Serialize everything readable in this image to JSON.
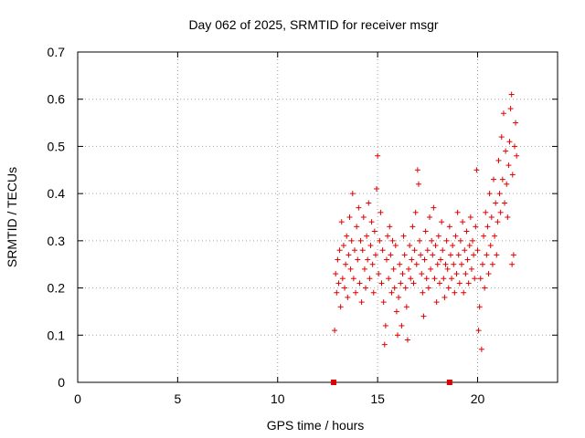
{
  "chart_data": {
    "type": "scatter",
    "title": "Day 062 of 2025, SRMTID for receiver msgr",
    "xlabel": "GPS time / hours",
    "ylabel": "SRMTID / TECUs",
    "xlim": [
      0,
      24
    ],
    "ylim": [
      0,
      0.7
    ],
    "xticks": [
      0,
      5,
      10,
      15,
      20
    ],
    "yticks": [
      0,
      0.1,
      0.2,
      0.3,
      0.4,
      0.5,
      0.6,
      0.7
    ],
    "xtick_labels": [
      "0",
      "5",
      "10",
      "15",
      "20"
    ],
    "ytick_labels": [
      "0",
      "0.1",
      "0.2",
      "0.3",
      "0.4",
      "0.5",
      "0.6",
      "0.7"
    ],
    "grid": true,
    "marker": "plus",
    "marker_color": "#e00000",
    "zero_markers": [
      12.8,
      18.6
    ],
    "series": [
      {
        "name": "SRMTID",
        "points": [
          [
            12.85,
            0.11
          ],
          [
            12.9,
            0.23
          ],
          [
            12.95,
            0.19
          ],
          [
            13.0,
            0.26
          ],
          [
            13.05,
            0.21
          ],
          [
            13.1,
            0.28
          ],
          [
            13.15,
            0.16
          ],
          [
            13.2,
            0.34
          ],
          [
            13.25,
            0.22
          ],
          [
            13.3,
            0.29
          ],
          [
            13.35,
            0.2
          ],
          [
            13.4,
            0.25
          ],
          [
            13.45,
            0.31
          ],
          [
            13.5,
            0.18
          ],
          [
            13.55,
            0.27
          ],
          [
            13.6,
            0.35
          ],
          [
            13.65,
            0.24
          ],
          [
            13.7,
            0.3
          ],
          [
            13.75,
            0.4
          ],
          [
            13.8,
            0.22
          ],
          [
            13.85,
            0.28
          ],
          [
            13.9,
            0.19
          ],
          [
            13.95,
            0.33
          ],
          [
            14.0,
            0.26
          ],
          [
            14.05,
            0.37
          ],
          [
            14.1,
            0.21
          ],
          [
            14.15,
            0.3
          ],
          [
            14.2,
            0.17
          ],
          [
            14.25,
            0.28
          ],
          [
            14.3,
            0.35
          ],
          [
            14.35,
            0.24
          ],
          [
            14.4,
            0.2
          ],
          [
            14.45,
            0.31
          ],
          [
            14.5,
            0.26
          ],
          [
            14.55,
            0.38
          ],
          [
            14.6,
            0.22
          ],
          [
            14.65,
            0.29
          ],
          [
            14.7,
            0.34
          ],
          [
            14.75,
            0.25
          ],
          [
            14.8,
            0.19
          ],
          [
            14.85,
            0.32
          ],
          [
            14.9,
            0.27
          ],
          [
            14.95,
            0.41
          ],
          [
            15.0,
            0.48
          ],
          [
            15.05,
            0.23
          ],
          [
            15.1,
            0.3
          ],
          [
            15.15,
            0.36
          ],
          [
            15.2,
            0.21
          ],
          [
            15.25,
            0.28
          ],
          [
            15.3,
            0.17
          ],
          [
            15.35,
            0.08
          ],
          [
            15.4,
            0.12
          ],
          [
            15.45,
            0.26
          ],
          [
            15.5,
            0.31
          ],
          [
            15.55,
            0.22
          ],
          [
            15.6,
            0.33
          ],
          [
            15.65,
            0.27
          ],
          [
            15.7,
            0.19
          ],
          [
            15.75,
            0.3
          ],
          [
            15.8,
            0.24
          ],
          [
            15.85,
            0.2
          ],
          [
            15.9,
            0.29
          ],
          [
            15.95,
            0.15
          ],
          [
            16.0,
            0.1
          ],
          [
            16.05,
            0.18
          ],
          [
            16.1,
            0.25
          ],
          [
            16.15,
            0.21
          ],
          [
            16.2,
            0.12
          ],
          [
            16.25,
            0.23
          ],
          [
            16.3,
            0.31
          ],
          [
            16.35,
            0.27
          ],
          [
            16.4,
            0.2
          ],
          [
            16.45,
            0.16
          ],
          [
            16.5,
            0.09
          ],
          [
            16.55,
            0.24
          ],
          [
            16.6,
            0.29
          ],
          [
            16.65,
            0.22
          ],
          [
            16.7,
            0.26
          ],
          [
            16.75,
            0.33
          ],
          [
            16.8,
            0.21
          ],
          [
            16.85,
            0.28
          ],
          [
            16.9,
            0.36
          ],
          [
            16.95,
            0.25
          ],
          [
            17.0,
            0.45
          ],
          [
            17.05,
            0.42
          ],
          [
            17.1,
            0.3
          ],
          [
            17.15,
            0.27
          ],
          [
            17.2,
            0.23
          ],
          [
            17.25,
            0.19
          ],
          [
            17.3,
            0.14
          ],
          [
            17.35,
            0.26
          ],
          [
            17.4,
            0.32
          ],
          [
            17.45,
            0.22
          ],
          [
            17.5,
            0.28
          ],
          [
            17.55,
            0.2
          ],
          [
            17.6,
            0.35
          ],
          [
            17.65,
            0.24
          ],
          [
            17.7,
            0.3
          ],
          [
            17.75,
            0.27
          ],
          [
            17.8,
            0.37
          ],
          [
            17.85,
            0.22
          ],
          [
            17.9,
            0.29
          ],
          [
            17.95,
            0.17
          ],
          [
            18.0,
            0.25
          ],
          [
            18.05,
            0.31
          ],
          [
            18.1,
            0.21
          ],
          [
            18.15,
            0.26
          ],
          [
            18.2,
            0.34
          ],
          [
            18.25,
            0.28
          ],
          [
            18.3,
            0.22
          ],
          [
            18.35,
            0.18
          ],
          [
            18.4,
            0.25
          ],
          [
            18.45,
            0.3
          ],
          [
            18.5,
            0.24
          ],
          [
            18.55,
            0.2
          ],
          [
            18.6,
            0.33
          ],
          [
            18.65,
            0.27
          ],
          [
            18.7,
            0.22
          ],
          [
            18.75,
            0.29
          ],
          [
            18.8,
            0.25
          ],
          [
            18.85,
            0.19
          ],
          [
            18.9,
            0.31
          ],
          [
            18.95,
            0.23
          ],
          [
            19.0,
            0.36
          ],
          [
            19.05,
            0.27
          ],
          [
            19.1,
            0.21
          ],
          [
            19.15,
            0.3
          ],
          [
            19.2,
            0.25
          ],
          [
            19.25,
            0.34
          ],
          [
            19.3,
            0.19
          ],
          [
            19.35,
            0.28
          ],
          [
            19.4,
            0.23
          ],
          [
            19.45,
            0.32
          ],
          [
            19.5,
            0.26
          ],
          [
            19.55,
            0.21
          ],
          [
            19.6,
            0.29
          ],
          [
            19.65,
            0.35
          ],
          [
            19.7,
            0.24
          ],
          [
            19.75,
            0.3
          ],
          [
            19.8,
            0.27
          ],
          [
            19.85,
            0.22
          ],
          [
            19.9,
            0.33
          ],
          [
            19.95,
            0.45
          ],
          [
            20.0,
            0.28
          ],
          [
            20.05,
            0.11
          ],
          [
            20.1,
            0.16
          ],
          [
            20.15,
            0.22
          ],
          [
            20.2,
            0.07
          ],
          [
            20.25,
            0.25
          ],
          [
            20.3,
            0.31
          ],
          [
            20.35,
            0.2
          ],
          [
            20.4,
            0.36
          ],
          [
            20.45,
            0.27
          ],
          [
            20.5,
            0.33
          ],
          [
            20.55,
            0.23
          ],
          [
            20.6,
            0.4
          ],
          [
            20.65,
            0.29
          ],
          [
            20.7,
            0.35
          ],
          [
            20.75,
            0.25
          ],
          [
            20.8,
            0.43
          ],
          [
            20.85,
            0.31
          ],
          [
            20.9,
            0.38
          ],
          [
            20.95,
            0.27
          ],
          [
            21.0,
            0.34
          ],
          [
            21.05,
            0.47
          ],
          [
            21.1,
            0.4
          ],
          [
            21.15,
            0.36
          ],
          [
            21.2,
            0.52
          ],
          [
            21.25,
            0.43
          ],
          [
            21.3,
            0.57
          ],
          [
            21.35,
            0.38
          ],
          [
            21.4,
            0.49
          ],
          [
            21.45,
            0.42
          ],
          [
            21.5,
            0.35
          ],
          [
            21.55,
            0.46
          ],
          [
            21.6,
            0.51
          ],
          [
            21.65,
            0.58
          ],
          [
            21.7,
            0.61
          ],
          [
            21.75,
            0.44
          ],
          [
            21.8,
            0.27
          ],
          [
            21.85,
            0.5
          ],
          [
            21.9,
            0.55
          ],
          [
            21.95,
            0.48
          ],
          [
            21.72,
            0.25
          ]
        ]
      }
    ]
  }
}
